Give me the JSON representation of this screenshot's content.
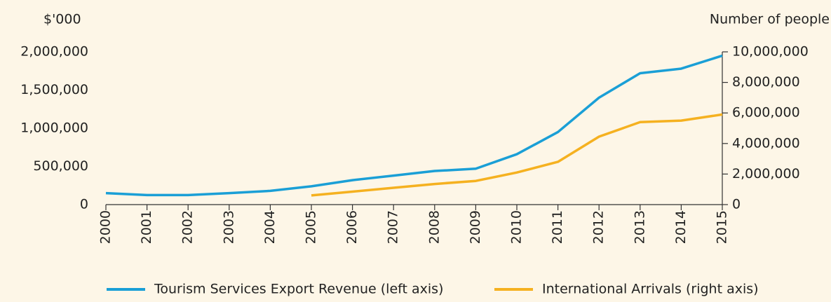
{
  "chart_data": {
    "type": "line",
    "y_label": "$'000",
    "y2_label": "Number of people",
    "categories": [
      "2000",
      "2001",
      "2002",
      "2003",
      "2004",
      "2005",
      "2006",
      "2007",
      "2008",
      "2009",
      "2010",
      "2011",
      "2012",
      "2013",
      "2014",
      "2015"
    ],
    "series": [
      {
        "name": "Tourism Services Export Revenue (left axis)",
        "color": "#1a9fd6",
        "values": [
          150000,
          125000,
          125000,
          150000,
          180000,
          240000,
          320000,
          380000,
          440000,
          470000,
          660000,
          950000,
          1400000,
          1720000,
          1780000,
          1950000
        ]
      },
      {
        "name": "International Arrivals (right axis)",
        "color": "#f5b120",
        "axis": "y2",
        "values": [
          null,
          null,
          null,
          null,
          null,
          600000,
          850000,
          1100000,
          1350000,
          1550000,
          2100000,
          2800000,
          4450000,
          5400000,
          5500000,
          5900000
        ]
      }
    ],
    "ylim": [
      0,
      2000000
    ],
    "yticks": [
      0,
      {
        "value": 500000,
        "label": "500,000"
      },
      {
        "value": 1000000,
        "label": "1,000,000"
      },
      {
        "value": 1500000,
        "label": "1,500,000"
      },
      {
        "value": 2000000,
        "label": "2,000,000"
      }
    ],
    "y2lim": [
      0,
      10000000
    ],
    "y2ticks": [
      0,
      {
        "value": 2000000,
        "label": "2,000,000"
      },
      {
        "value": 4000000,
        "label": "4,000,000"
      },
      {
        "value": 6000000,
        "label": "6,000,000"
      },
      {
        "value": 8000000,
        "label": "8,000,000"
      },
      {
        "value": 10000000,
        "label": "10,000,000"
      }
    ]
  }
}
